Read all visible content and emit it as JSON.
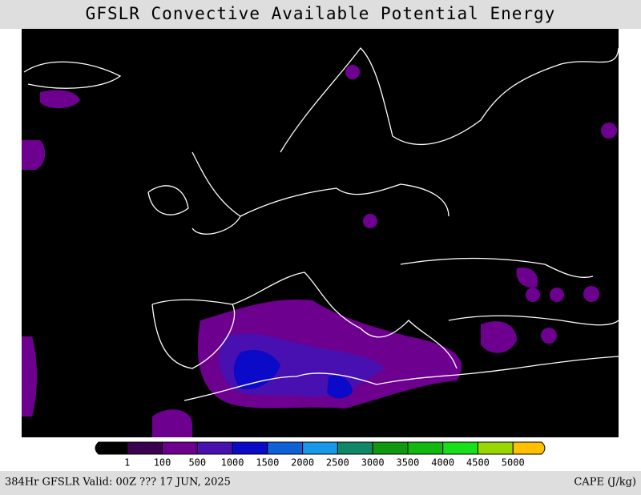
{
  "header": {
    "title": "GFSLR Convective Available Potential Energy"
  },
  "colorbar": {
    "colors": [
      "#000000",
      "#3a0050",
      "#6e0090",
      "#4810b0",
      "#0a0ac8",
      "#1060d8",
      "#1898e8",
      "#108868",
      "#109810",
      "#10b810",
      "#18e018",
      "#98d800",
      "#ffc000"
    ],
    "labels": [
      "1",
      "100",
      "500",
      "1000",
      "1500",
      "2000",
      "2500",
      "3000",
      "3500",
      "4000",
      "4500",
      "5000"
    ]
  },
  "footer": {
    "valid": "384Hr GFSLR Valid: 00Z ??? 17 JUN, 2025",
    "units": "CAPE (J/kg)"
  }
}
